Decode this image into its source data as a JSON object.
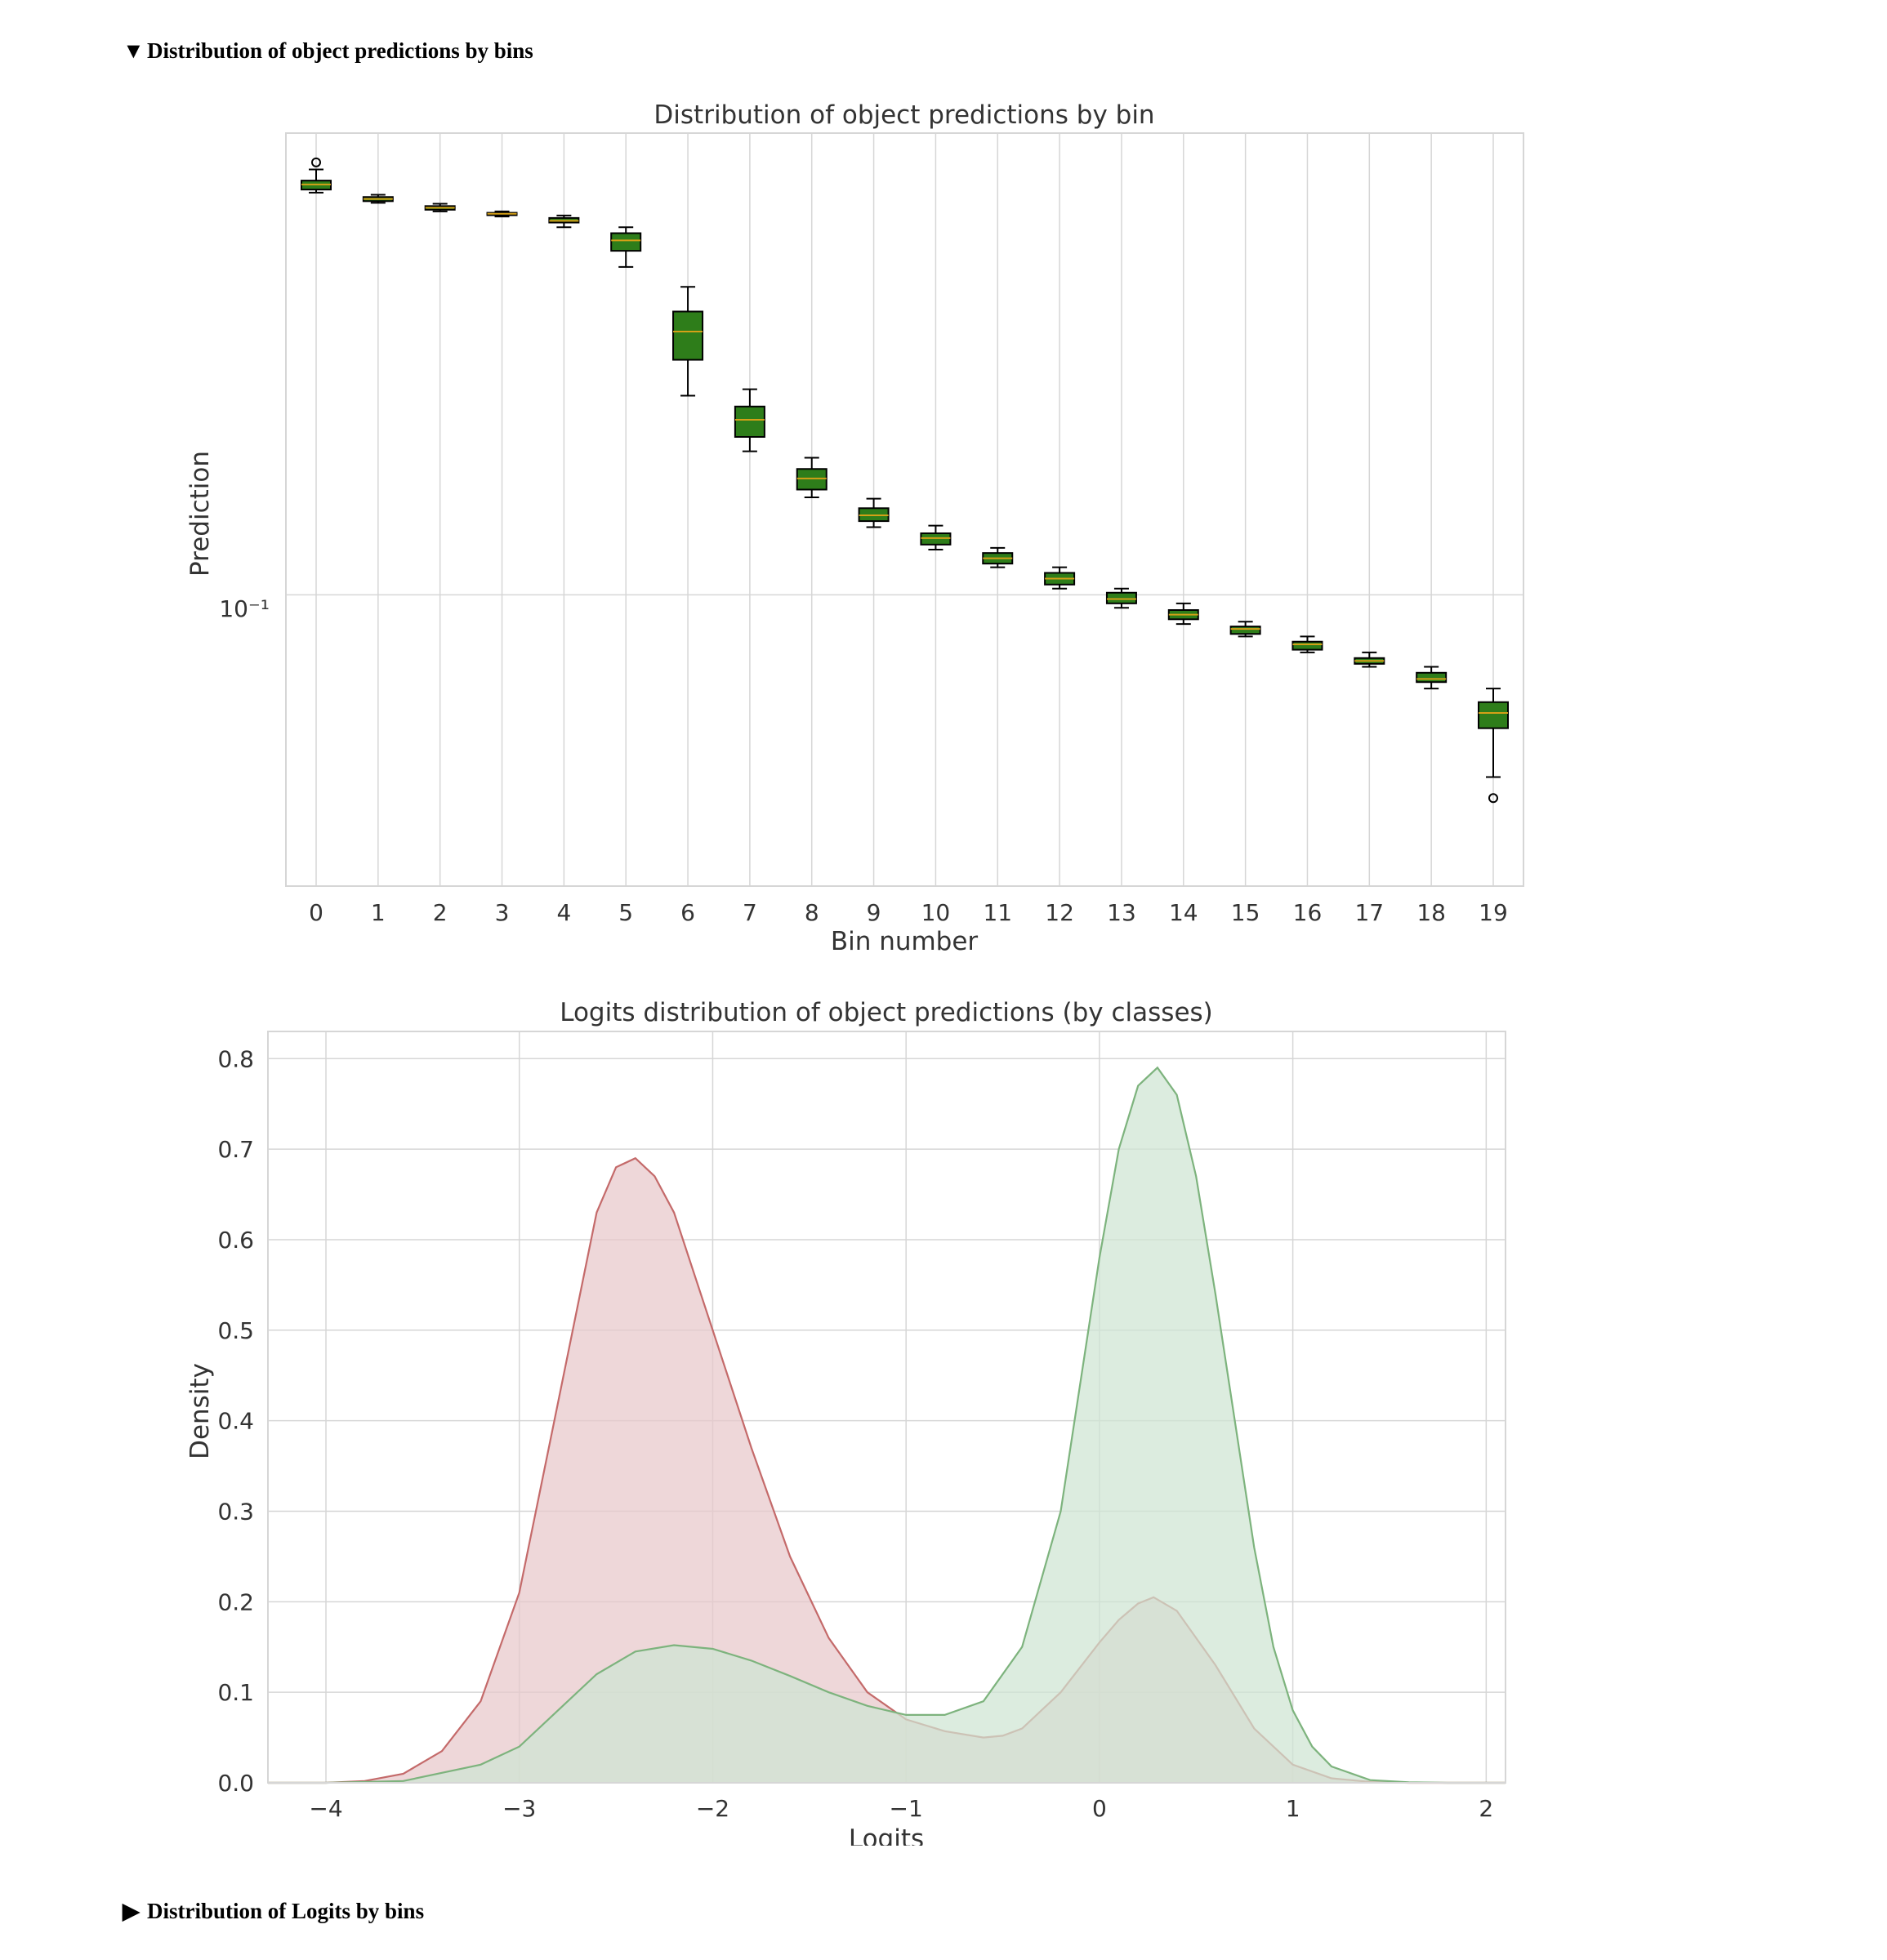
{
  "sections": [
    {
      "label": "Distribution of object predictions by bins",
      "expanded": true
    },
    {
      "label": "Distribution of Logits by bins",
      "expanded": false
    }
  ],
  "colors": {
    "box_fill": "#2e7d1a",
    "median": "#d4a017",
    "kde_red": "#c46a6a",
    "kde_red_fill": "#e8c8cb",
    "kde_green": "#7db37d",
    "kde_green_fill": "#cfe5d2",
    "overlap_fill": "#c9c5b3",
    "grid": "#d6d6d6"
  },
  "chart_data": [
    {
      "type": "box",
      "title": "Distribution of object predictions by bin",
      "xlabel": "Bin number",
      "ylabel": "Prediction",
      "yscale": "log",
      "y_tick_label": "10⁻¹",
      "y_tick_value": 0.1,
      "ylim": [
        0.025,
        0.9
      ],
      "grid": true,
      "categories": [
        "0",
        "1",
        "2",
        "3",
        "4",
        "5",
        "6",
        "7",
        "8",
        "9",
        "10",
        "11",
        "12",
        "13",
        "14",
        "15",
        "16",
        "17",
        "18",
        "19"
      ],
      "boxes": [
        {
          "whislo": 0.678,
          "q1": 0.688,
          "med": 0.705,
          "q3": 0.718,
          "whishi": 0.757,
          "fliers": [
            0.783
          ]
        },
        {
          "whislo": 0.646,
          "q1": 0.651,
          "med": 0.658,
          "q3": 0.664,
          "whishi": 0.671,
          "fliers": []
        },
        {
          "whislo": 0.62,
          "q1": 0.625,
          "med": 0.631,
          "q3": 0.636,
          "whishi": 0.643,
          "fliers": []
        },
        {
          "whislo": 0.605,
          "q1": 0.609,
          "med": 0.613,
          "q3": 0.616,
          "whishi": 0.62,
          "fliers": []
        },
        {
          "whislo": 0.575,
          "q1": 0.588,
          "med": 0.593,
          "q3": 0.601,
          "whishi": 0.608,
          "fliers": []
        },
        {
          "whislo": 0.476,
          "q1": 0.514,
          "med": 0.54,
          "q3": 0.559,
          "whishi": 0.575,
          "fliers": []
        },
        {
          "whislo": 0.258,
          "q1": 0.306,
          "med": 0.35,
          "q3": 0.385,
          "whishi": 0.433,
          "fliers": []
        },
        {
          "whislo": 0.198,
          "q1": 0.212,
          "med": 0.23,
          "q3": 0.245,
          "whishi": 0.266,
          "fliers": []
        },
        {
          "whislo": 0.159,
          "q1": 0.165,
          "med": 0.174,
          "q3": 0.182,
          "whishi": 0.192,
          "fliers": []
        },
        {
          "whislo": 0.138,
          "q1": 0.142,
          "med": 0.146,
          "q3": 0.151,
          "whishi": 0.158,
          "fliers": []
        },
        {
          "whislo": 0.124,
          "q1": 0.127,
          "med": 0.131,
          "q3": 0.134,
          "whishi": 0.139,
          "fliers": []
        },
        {
          "whislo": 0.114,
          "q1": 0.116,
          "med": 0.119,
          "q3": 0.122,
          "whishi": 0.125,
          "fliers": []
        },
        {
          "whislo": 0.103,
          "q1": 0.105,
          "med": 0.108,
          "q3": 0.111,
          "whishi": 0.114,
          "fliers": []
        },
        {
          "whislo": 0.094,
          "q1": 0.096,
          "med": 0.098,
          "q3": 0.101,
          "whishi": 0.103,
          "fliers": []
        },
        {
          "whislo": 0.087,
          "q1": 0.089,
          "med": 0.091,
          "q3": 0.093,
          "whishi": 0.096,
          "fliers": []
        },
        {
          "whislo": 0.082,
          "q1": 0.083,
          "med": 0.085,
          "q3": 0.086,
          "whishi": 0.088,
          "fliers": []
        },
        {
          "whislo": 0.076,
          "q1": 0.077,
          "med": 0.079,
          "q3": 0.08,
          "whishi": 0.082,
          "fliers": []
        },
        {
          "whislo": 0.071,
          "q1": 0.072,
          "med": 0.073,
          "q3": 0.074,
          "whishi": 0.076,
          "fliers": []
        },
        {
          "whislo": 0.064,
          "q1": 0.066,
          "med": 0.067,
          "q3": 0.069,
          "whishi": 0.071,
          "fliers": []
        },
        {
          "whislo": 0.042,
          "q1": 0.053,
          "med": 0.057,
          "q3": 0.06,
          "whishi": 0.064,
          "fliers": [
            0.038
          ]
        }
      ]
    },
    {
      "type": "area",
      "title": "Logits distribution of object predictions (by classes)",
      "xlabel": "Logits",
      "ylabel": "Density",
      "xlim": [
        -4.3,
        2.1
      ],
      "ylim": [
        0,
        0.83
      ],
      "x_ticks": [
        -4,
        -3,
        -2,
        -1,
        0,
        1,
        2
      ],
      "x_tick_labels": [
        "−4",
        "−3",
        "−2",
        "−1",
        "0",
        "1",
        "2"
      ],
      "y_ticks": [
        0.0,
        0.1,
        0.2,
        0.3,
        0.4,
        0.5,
        0.6,
        0.7,
        0.8
      ],
      "y_tick_labels": [
        "0.0",
        "0.1",
        "0.2",
        "0.3",
        "0.4",
        "0.5",
        "0.6",
        "0.7",
        "0.8"
      ],
      "grid": true,
      "series": [
        {
          "x": [
            -4.3,
            -4.0,
            -3.8,
            -3.6,
            -3.4,
            -3.2,
            -3.0,
            -2.8,
            -2.6,
            -2.5,
            -2.4,
            -2.3,
            -2.2,
            -2.0,
            -1.8,
            -1.6,
            -1.4,
            -1.2,
            -1.0,
            -0.8,
            -0.6,
            -0.5,
            -0.4,
            -0.2,
            0.0,
            0.1,
            0.2,
            0.28,
            0.4,
            0.6,
            0.8,
            1.0,
            1.2,
            1.4,
            1.6,
            1.8,
            2.1
          ],
          "y": [
            0,
            0,
            0.002,
            0.01,
            0.035,
            0.09,
            0.21,
            0.42,
            0.63,
            0.68,
            0.69,
            0.67,
            0.63,
            0.5,
            0.37,
            0.25,
            0.16,
            0.1,
            0.07,
            0.057,
            0.05,
            0.052,
            0.06,
            0.1,
            0.155,
            0.18,
            0.198,
            0.205,
            0.19,
            0.13,
            0.06,
            0.02,
            0.005,
            0.001,
            0,
            0,
            0
          ]
        },
        {
          "x": [
            -4.3,
            -4.0,
            -3.6,
            -3.2,
            -3.0,
            -2.8,
            -2.6,
            -2.4,
            -2.2,
            -2.0,
            -1.8,
            -1.6,
            -1.4,
            -1.2,
            -1.0,
            -0.8,
            -0.6,
            -0.4,
            -0.2,
            0.0,
            0.1,
            0.2,
            0.3,
            0.4,
            0.5,
            0.6,
            0.7,
            0.8,
            0.9,
            1.0,
            1.1,
            1.2,
            1.4,
            1.6,
            1.8,
            2.1
          ],
          "y": [
            0,
            0,
            0.002,
            0.02,
            0.04,
            0.08,
            0.12,
            0.145,
            0.152,
            0.148,
            0.135,
            0.118,
            0.1,
            0.085,
            0.075,
            0.075,
            0.09,
            0.15,
            0.3,
            0.58,
            0.7,
            0.77,
            0.79,
            0.76,
            0.67,
            0.54,
            0.4,
            0.26,
            0.15,
            0.08,
            0.04,
            0.018,
            0.003,
            0.0005,
            0,
            0
          ]
        }
      ]
    }
  ]
}
